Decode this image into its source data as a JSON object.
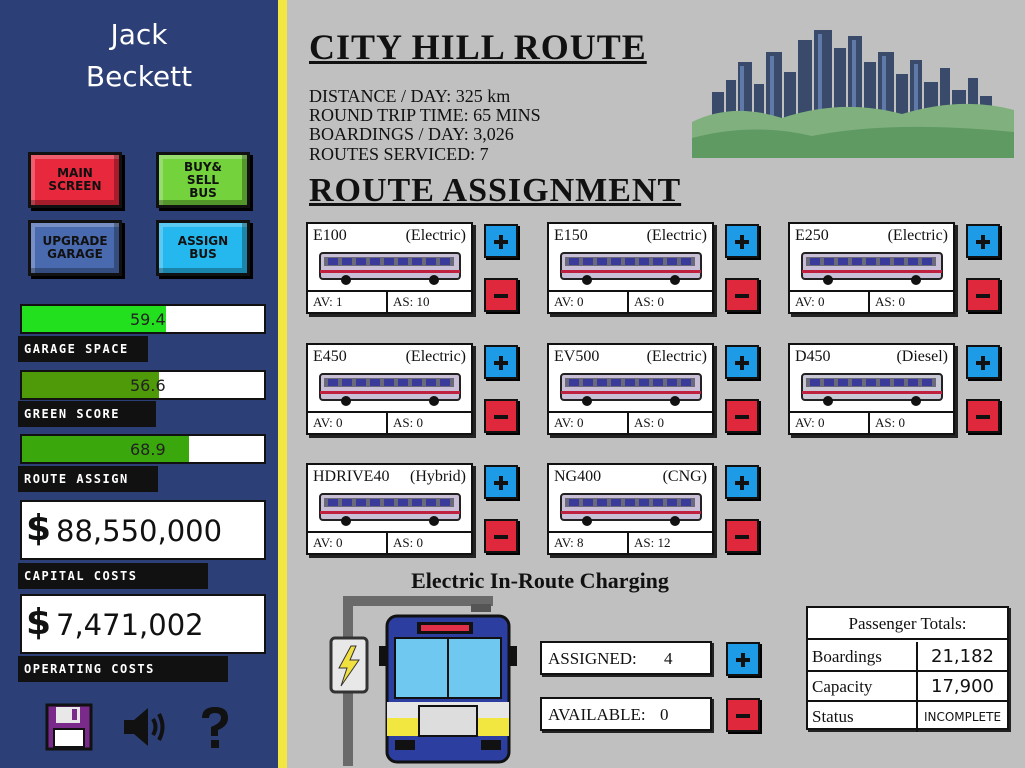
{
  "player": {
    "first_name": "Jack",
    "last_name": "Beckett"
  },
  "nav": {
    "main_screen": [
      "MAIN",
      "SCREEN"
    ],
    "buy_sell": [
      "BUY&",
      "SELL",
      "BUS"
    ],
    "upgrade": [
      "UPGRADE",
      "GARAGE"
    ],
    "assign": [
      "ASSIGN",
      "BUS"
    ]
  },
  "meters": {
    "garage_space": {
      "label": "GARAGE SPACE",
      "value": "59.4",
      "level": 0.594,
      "color": "#22e01e"
    },
    "green_score": {
      "label": "GREEN SCORE",
      "value": "56.6",
      "level": 0.566,
      "color": "#4f9a08"
    },
    "route_assign": {
      "label": "ROUTE ASSIGN",
      "value": "68.9",
      "level": 0.689,
      "color": "#3aa70c"
    }
  },
  "costs": {
    "capital": {
      "label": "CAPITAL COSTS",
      "symbol": "$",
      "value": "88,550,000"
    },
    "operating": {
      "label": "OPERATING COSTS",
      "symbol": "$",
      "value": "7,471,002"
    }
  },
  "bottom_icons": [
    "save-icon",
    "sound-icon",
    "help-icon"
  ],
  "route": {
    "title": "CITY HILL ROUTE",
    "distance": "DISTANCE / DAY: 325 km",
    "round_trip": "ROUND TRIP TIME: 65 MINS",
    "boardings": "BOARDINGS / DAY: 3,026",
    "routes_serviced": "ROUTES SERVICED: 7"
  },
  "assignment_title": "ROUTE ASSIGNMENT",
  "buses": [
    {
      "name": "E100",
      "fuel": "(Electric)",
      "av": "AV: 1",
      "as": "AS: 10"
    },
    {
      "name": "E150",
      "fuel": "(Electric)",
      "av": "AV: 0",
      "as": "AS: 0"
    },
    {
      "name": "E250",
      "fuel": "(Electric)",
      "av": "AV: 0",
      "as": "AS: 0"
    },
    {
      "name": "E450",
      "fuel": "(Electric)",
      "av": "AV: 0",
      "as": "AS: 0"
    },
    {
      "name": "EV500",
      "fuel": "(Electric)",
      "av": "AV: 0",
      "as": "AS: 0"
    },
    {
      "name": "D450",
      "fuel": "(Diesel)",
      "av": "AV: 0",
      "as": "AS: 0"
    },
    {
      "name": "HDRIVE40",
      "fuel": "(Hybrid)",
      "av": "AV: 0",
      "as": "AS: 0"
    },
    {
      "name": "NG400",
      "fuel": "(CNG)",
      "av": "AV: 8",
      "as": "AS: 12"
    }
  ],
  "charging": {
    "title": "Electric In-Route Charging",
    "assigned_label": "ASSIGNED:",
    "assigned_value": "4",
    "available_label": "AVAILABLE:",
    "available_value": "0"
  },
  "passenger_totals": {
    "title": "Passenger Totals:",
    "rows": [
      {
        "label": "Boardings",
        "value": "21,182"
      },
      {
        "label": "Capacity",
        "value": "17,900"
      },
      {
        "label": "Status",
        "value": "INCOMPLETE"
      }
    ]
  }
}
